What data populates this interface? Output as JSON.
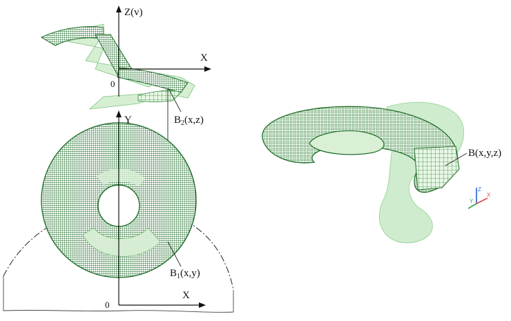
{
  "colors": {
    "mesh_dark": "#1f6e2a",
    "mesh_mid": "#2e8b3a",
    "surface_light": "#bfe6bf",
    "surface_fill": "#d9f0d6",
    "axis_color": "#111111"
  },
  "top_view": {
    "z_axis_label": "Z(v)",
    "x_axis_label": "X",
    "origin_label": "0",
    "point_label": "B2(x,z)"
  },
  "bottom_view": {
    "y_axis_label": "Y",
    "x_axis_label": "X",
    "origin_label": "0",
    "point_label": "B1(x,y)"
  },
  "iso_view": {
    "point_label": "B(x,y,z)",
    "triad_labels": [
      "Z",
      "Y",
      "X"
    ]
  }
}
